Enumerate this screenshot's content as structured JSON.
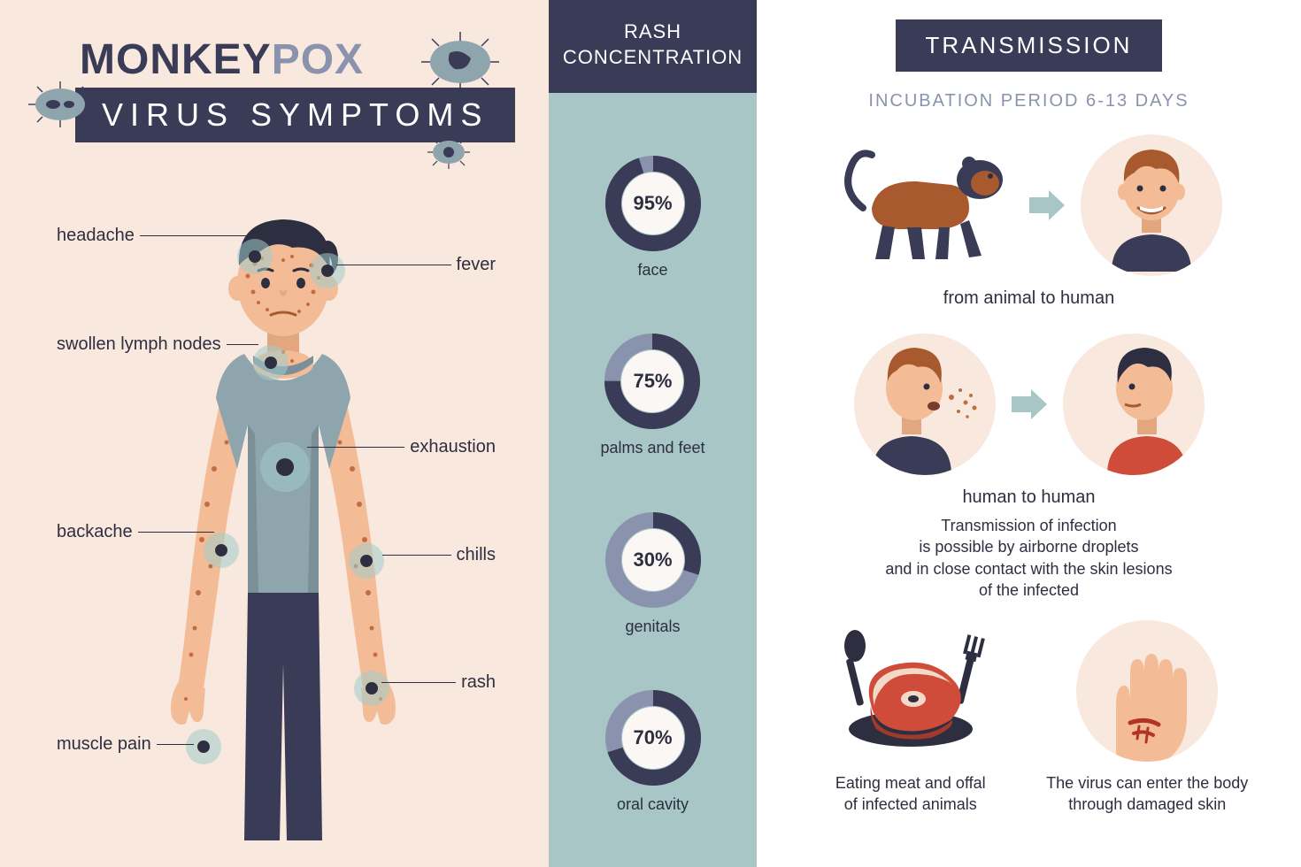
{
  "colors": {
    "bg_cream": "#f9e8de",
    "bg_teal": "#a7c6c5",
    "dark": "#3a3b56",
    "accent_gray": "#8a93ad",
    "white": "#ffffff",
    "skin": "#f3bc97",
    "skin_shade": "#e3a77f",
    "rash_spot": "#c16d42",
    "hair": "#2d2e3f",
    "shirt": "#8fa5ad",
    "shirt_shade": "#7a8f97",
    "pants": "#3a3b56",
    "monkey_body": "#a85a2e",
    "monkey_dark": "#3a3b56",
    "meat": "#cf4b3a",
    "meat_fat": "#f2d9c8",
    "blood": "#b23427"
  },
  "title": {
    "left": "MONKEY",
    "right": "POX",
    "banner": "VIRUS  SYMPTOMS"
  },
  "symptoms": {
    "left": [
      {
        "label": "headache"
      },
      {
        "label": "swollen lymph nodes"
      },
      {
        "label": "backache"
      },
      {
        "label": "muscle pain"
      }
    ],
    "right": [
      {
        "label": "fever"
      },
      {
        "label": "exhaustion"
      },
      {
        "label": "chills"
      },
      {
        "label": "rash"
      }
    ]
  },
  "rash": {
    "header_l1": "RASH",
    "header_l2": "CONCENTRATION",
    "track_color": "#8a93ad",
    "fill_color": "#3a3b56",
    "items": [
      {
        "pct": 95,
        "label": "face"
      },
      {
        "pct": 75,
        "label": "palms and feet"
      },
      {
        "pct": 30,
        "label": "genitals"
      },
      {
        "pct": 70,
        "label": "oral cavity"
      }
    ]
  },
  "transmission": {
    "header": "TRANSMISSION",
    "incubation": "INCUBATION PERIOD 6-13 DAYS",
    "animal_to_human": "from animal to human",
    "human_to_human": "human to human",
    "airborne": "Transmission of infection\nis possible by airborne droplets\nand in close contact with the skin lesions\nof the infected",
    "meat": "Eating meat and offal\nof infected animals",
    "skin": "The virus can enter the body\nthrough damaged skin"
  }
}
